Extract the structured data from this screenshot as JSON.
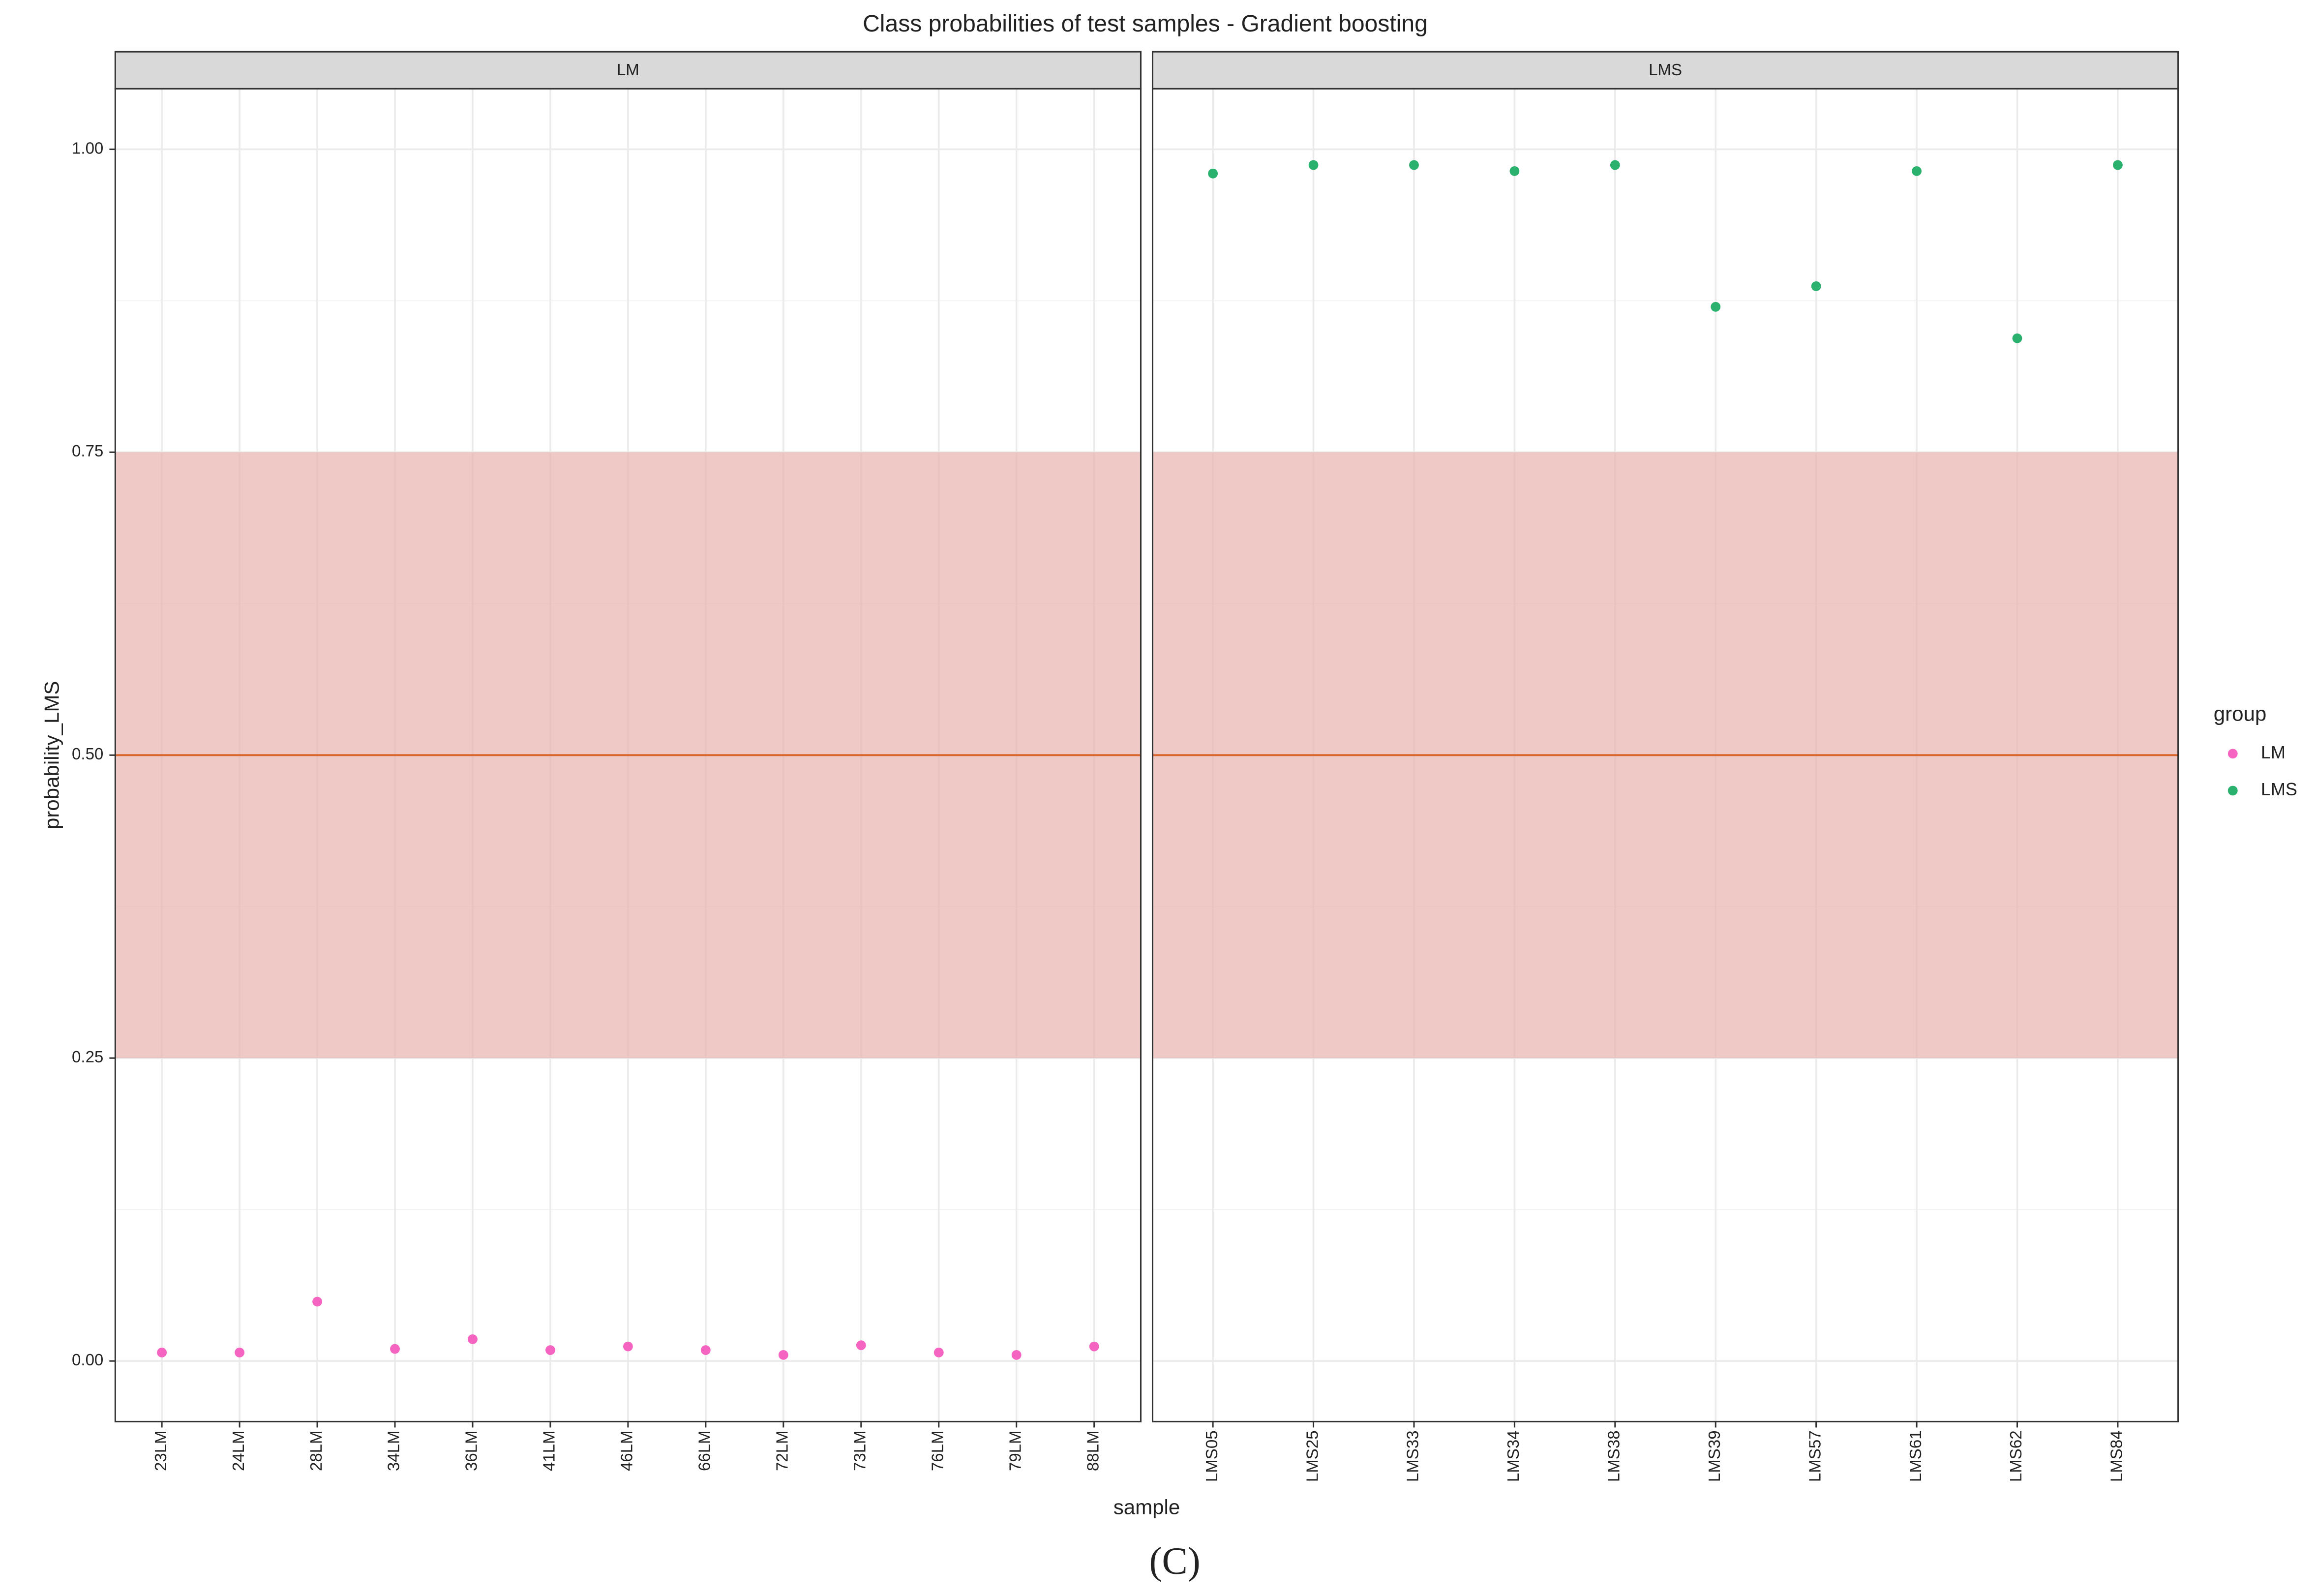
{
  "chart_data": {
    "type": "scatter",
    "title": "Class probabilities of test samples - Gradient boosting",
    "x_label": "sample",
    "y_label": "probability_LMS",
    "ylim": [
      -0.05,
      1.05
    ],
    "yticks": [
      {
        "value": 0,
        "label": "0.00"
      },
      {
        "value": 0.25,
        "label": "0.25"
      },
      {
        "value": 0.5,
        "label": "0.50"
      },
      {
        "value": 0.75,
        "label": "0.75"
      },
      {
        "value": 1,
        "label": "1.00"
      }
    ],
    "band": [
      0.25,
      0.75
    ],
    "band_color": "#e8b2ae",
    "hline": 0.5,
    "hline_color": "#d9662c",
    "grid": true,
    "legend_title": "group",
    "series": [
      {
        "name": "LM",
        "color": "#f564c0"
      },
      {
        "name": "LMS",
        "color": "#2bb16e"
      }
    ],
    "panels": [
      {
        "title": "LM",
        "categories": [
          "23LM",
          "24LM",
          "28LM",
          "34LM",
          "36LM",
          "41LM",
          "46LM",
          "66LM",
          "72LM",
          "73LM",
          "76LM",
          "79LM",
          "88LM"
        ],
        "values": [
          0.007,
          0.007,
          0.049,
          0.01,
          0.018,
          0.009,
          0.012,
          0.009,
          0.005,
          0.013,
          0.007,
          0.005,
          0.012
        ]
      },
      {
        "title": "LMS",
        "categories": [
          "LMS05",
          "LMS25",
          "LMS33",
          "LMS34",
          "LMS38",
          "LMS39",
          "LMS57",
          "LMS61",
          "LMS62",
          "LMS84"
        ],
        "values": [
          0.98,
          0.987,
          0.987,
          0.982,
          0.987,
          0.87,
          0.887,
          0.982,
          0.844,
          0.987
        ]
      }
    ]
  },
  "caption": "(C)"
}
